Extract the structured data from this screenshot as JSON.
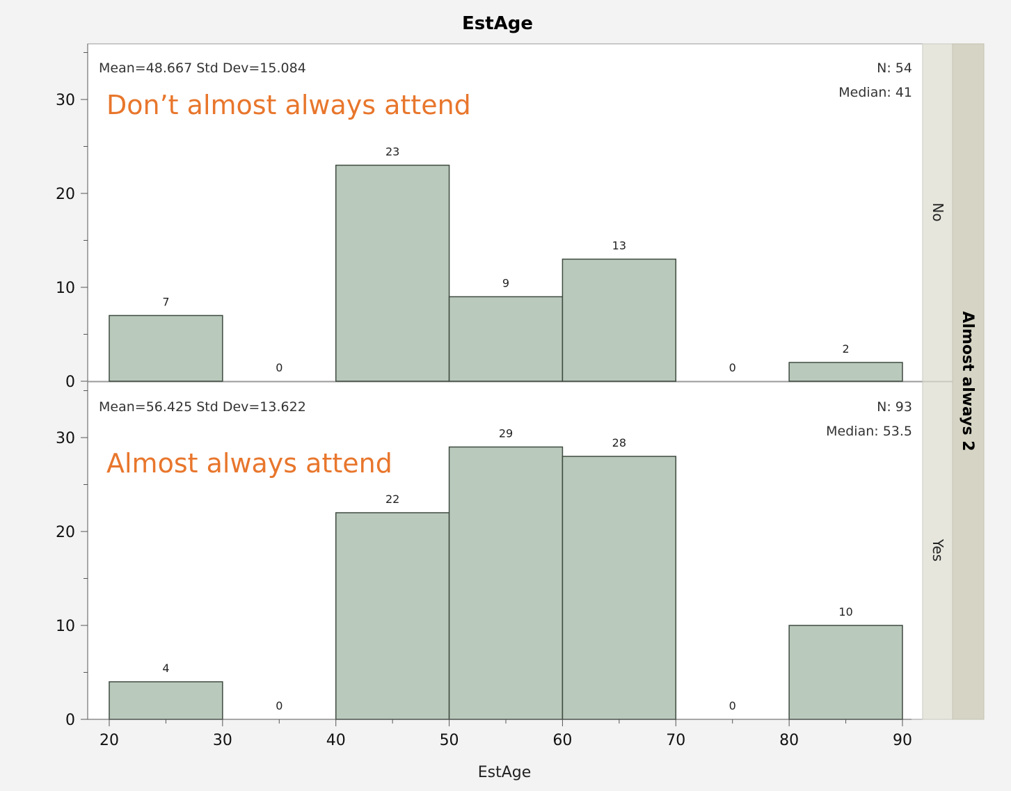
{
  "chart_data": {
    "type": "bar",
    "title": "EstAge",
    "xlabel": "EstAge",
    "ylabel": "",
    "group_label": "Almost always 2",
    "bin_edges": [
      20,
      30,
      40,
      50,
      60,
      70,
      80,
      90
    ],
    "x_ticks": [
      20,
      30,
      40,
      50,
      60,
      70,
      80,
      90
    ],
    "y_ticks": [
      0,
      10,
      20,
      30
    ],
    "ylim": [
      0,
      35
    ],
    "grid": false,
    "panels": [
      {
        "strip_label": "No",
        "annotation": "Don’t almost always attend",
        "stats_left": "Mean=48.667  Std Dev=15.084",
        "stats_n": "N: 54",
        "stats_median": "Median: 41",
        "values": [
          7,
          0,
          23,
          9,
          13,
          0,
          2
        ]
      },
      {
        "strip_label": "Yes",
        "annotation": "Almost always attend",
        "stats_left": "Mean=56.425  Std Dev=13.622",
        "stats_n": "N: 93",
        "stats_median": "Median: 53.5",
        "values": [
          4,
          0,
          22,
          29,
          28,
          0,
          10
        ]
      }
    ]
  }
}
